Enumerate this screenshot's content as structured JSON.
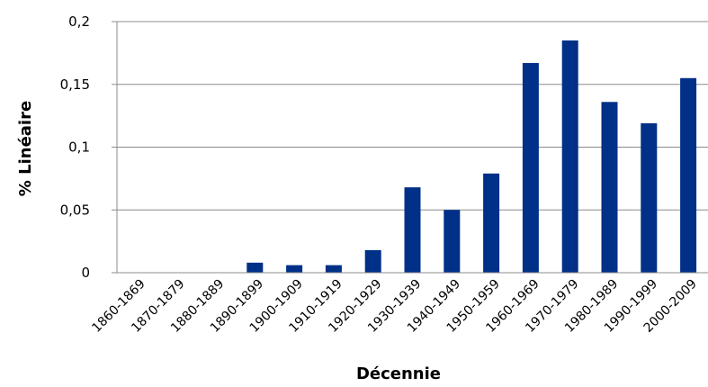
{
  "chart_data": {
    "type": "bar",
    "title": "",
    "xlabel": "Décennie",
    "ylabel": "% Linéaire",
    "categories": [
      "1860-1869",
      "1870-1879",
      "1880-1889",
      "1890-1899",
      "1900-1909",
      "1910-1919",
      "1920-1929",
      "1930-1939",
      "1940-1949",
      "1950-1959",
      "1960-1969",
      "1970-1979",
      "1980-1989",
      "1990-1999",
      "2000-2009"
    ],
    "values": [
      0,
      0,
      0,
      0.008,
      0.006,
      0.006,
      0.018,
      0.068,
      0.05,
      0.079,
      0.167,
      0.185,
      0.136,
      0.119,
      0.155
    ],
    "ylim": [
      0,
      0.2
    ],
    "yticks": [
      "0",
      "0,05",
      "0,1",
      "0,15",
      "0,2"
    ],
    "grid": true,
    "legend": "none",
    "bar_color": "#003087"
  }
}
